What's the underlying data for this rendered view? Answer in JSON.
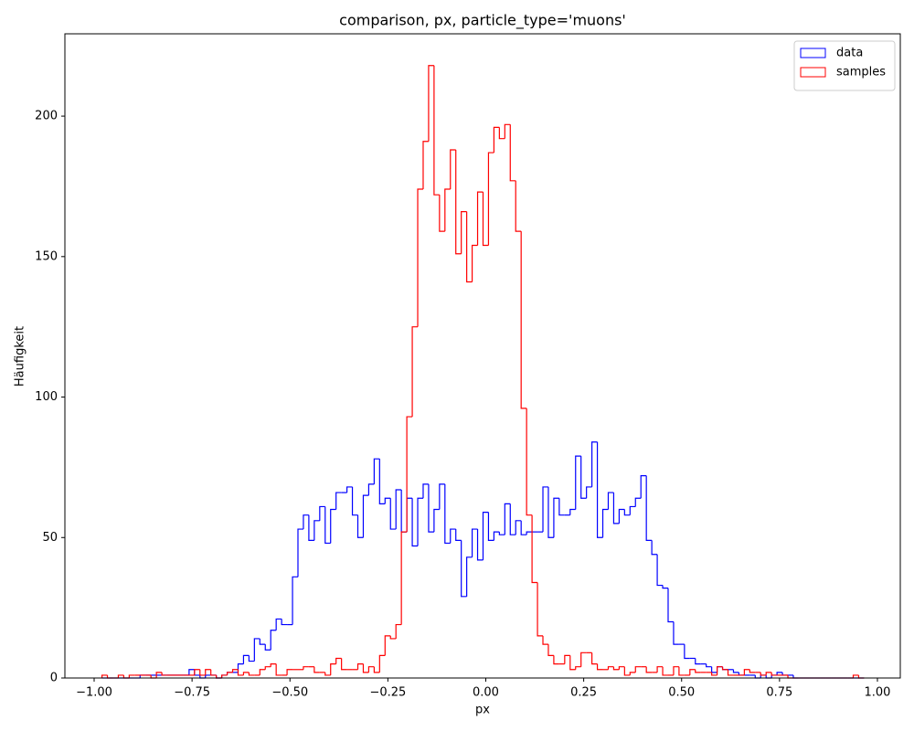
{
  "chart_data": {
    "type": "histogram",
    "title": "comparison, px, particle_type='muons'",
    "x_label": "px",
    "y_label": "Häufigkeit",
    "legend": "upper right",
    "xlim": [
      -1.0747,
      1.0584
    ],
    "ylim": [
      0,
      229.3
    ],
    "xticks": [
      {
        "value": -1,
        "label": "−1.00"
      },
      {
        "value": -0.75,
        "label": "−0.75"
      },
      {
        "value": -0.5,
        "label": "−0.50"
      },
      {
        "value": -0.25,
        "label": "−0.25"
      },
      {
        "value": 0,
        "label": "0.00"
      },
      {
        "value": 0.25,
        "label": "0.25"
      },
      {
        "value": 0.5,
        "label": "0.50"
      },
      {
        "value": 0.75,
        "label": "0.75"
      },
      {
        "value": 1,
        "label": "1.00"
      }
    ],
    "yticks": [
      0,
      50,
      100,
      150,
      200
    ],
    "bins": [
      -0.98,
      -0.9661,
      -0.9522,
      -0.9383,
      -0.9244,
      -0.9105,
      -0.8966,
      -0.8827,
      -0.8688,
      -0.8549,
      -0.841,
      -0.8271,
      -0.8132,
      -0.7993,
      -0.7854,
      -0.7715,
      -0.7576,
      -0.7437,
      -0.7298,
      -0.7159,
      -0.702,
      -0.6881,
      -0.6742,
      -0.6603,
      -0.6464,
      -0.6325,
      -0.6186,
      -0.6047,
      -0.5908,
      -0.5769,
      -0.563,
      -0.5491,
      -0.5352,
      -0.5213,
      -0.5074,
      -0.4935,
      -0.4796,
      -0.4657,
      -0.4518,
      -0.4379,
      -0.424,
      -0.4101,
      -0.3962,
      -0.3823,
      -0.3684,
      -0.3545,
      -0.3406,
      -0.3267,
      -0.3128,
      -0.2989,
      -0.285,
      -0.2711,
      -0.2572,
      -0.2433,
      -0.2294,
      -0.2155,
      -0.2016,
      -0.1877,
      -0.1738,
      -0.1599,
      -0.146,
      -0.1321,
      -0.1182,
      -0.1043,
      -0.0904,
      -0.0765,
      -0.0626,
      -0.0487,
      -0.0348,
      -0.0209,
      -0.007,
      0.0069,
      0.0208,
      0.0347,
      0.0486,
      0.0625,
      0.0764,
      0.0903,
      0.1042,
      0.1181,
      0.132,
      0.1459,
      0.1598,
      0.1737,
      0.1876,
      0.2015,
      0.2154,
      0.2293,
      0.2432,
      0.2571,
      0.271,
      0.2849,
      0.2988,
      0.3127,
      0.3266,
      0.3405,
      0.3544,
      0.3683,
      0.3822,
      0.3961,
      0.41,
      0.4239,
      0.4378,
      0.4517,
      0.4656,
      0.4795,
      0.4934,
      0.5073,
      0.5212,
      0.5351,
      0.549,
      0.5629,
      0.5768,
      0.5907,
      0.6046,
      0.6185,
      0.6324,
      0.6463,
      0.6602,
      0.6741,
      0.688,
      0.7019,
      0.7158,
      0.7297,
      0.7436,
      0.7575,
      0.7714,
      0.7853,
      0.7992,
      0.8131,
      0.827,
      0.8409,
      0.8548,
      0.8687,
      0.8826,
      0.8965,
      0.9104,
      0.9243,
      0.9382,
      0.9521,
      0.966
    ],
    "series": [
      {
        "name": "data",
        "color": "#0000ff",
        "values": [
          0,
          0,
          0,
          0,
          0,
          0,
          0,
          1,
          1,
          1,
          1,
          1,
          1,
          1,
          1,
          1,
          3,
          1,
          0,
          1,
          1,
          0,
          1,
          2,
          2,
          5,
          8,
          6,
          14,
          12,
          10,
          17,
          21,
          19,
          19,
          36,
          53,
          58,
          49,
          56,
          61,
          48,
          60,
          66,
          66,
          68,
          58,
          50,
          65,
          69,
          78,
          62,
          64,
          53,
          67,
          52,
          64,
          47,
          64,
          69,
          52,
          60,
          69,
          48,
          53,
          49,
          29,
          43,
          53,
          42,
          59,
          49,
          52,
          51,
          62,
          51,
          56,
          51,
          52,
          52,
          52,
          68,
          50,
          64,
          58,
          58,
          60,
          79,
          64,
          68,
          84,
          50,
          60,
          66,
          55,
          60,
          58,
          61,
          64,
          72,
          49,
          44,
          33,
          32,
          20,
          12,
          12,
          7,
          7,
          5,
          5,
          4,
          2,
          4,
          3,
          3,
          2,
          1,
          1,
          1,
          0,
          1,
          0,
          1,
          2,
          1,
          1,
          0,
          0,
          0,
          0,
          0,
          0,
          0,
          0,
          0,
          0,
          0,
          0,
          0
        ]
      },
      {
        "name": "samples",
        "color": "#ff0000",
        "values": [
          1,
          0,
          0,
          1,
          0,
          1,
          1,
          1,
          1,
          0,
          2,
          1,
          1,
          1,
          1,
          1,
          1,
          3,
          1,
          3,
          1,
          0,
          1,
          2,
          3,
          1,
          2,
          1,
          1,
          3,
          4,
          5,
          1,
          1,
          3,
          3,
          3,
          4,
          4,
          2,
          2,
          1,
          5,
          7,
          3,
          3,
          3,
          5,
          2,
          4,
          2,
          8,
          15,
          14,
          19,
          52,
          93,
          125,
          174,
          191,
          218,
          172,
          159,
          174,
          188,
          151,
          166,
          141,
          154,
          173,
          154,
          187,
          196,
          192,
          197,
          177,
          159,
          96,
          58,
          34,
          15,
          12,
          8,
          5,
          5,
          8,
          3,
          4,
          9,
          9,
          5,
          3,
          3,
          4,
          3,
          4,
          1,
          2,
          4,
          4,
          2,
          2,
          4,
          1,
          1,
          4,
          1,
          1,
          3,
          2,
          2,
          2,
          1,
          4,
          3,
          1,
          1,
          1,
          3,
          2,
          2,
          1,
          2,
          1,
          1,
          1,
          0,
          0,
          0,
          0,
          0,
          0,
          0,
          0,
          0,
          0,
          0,
          0,
          1,
          0
        ]
      }
    ]
  }
}
